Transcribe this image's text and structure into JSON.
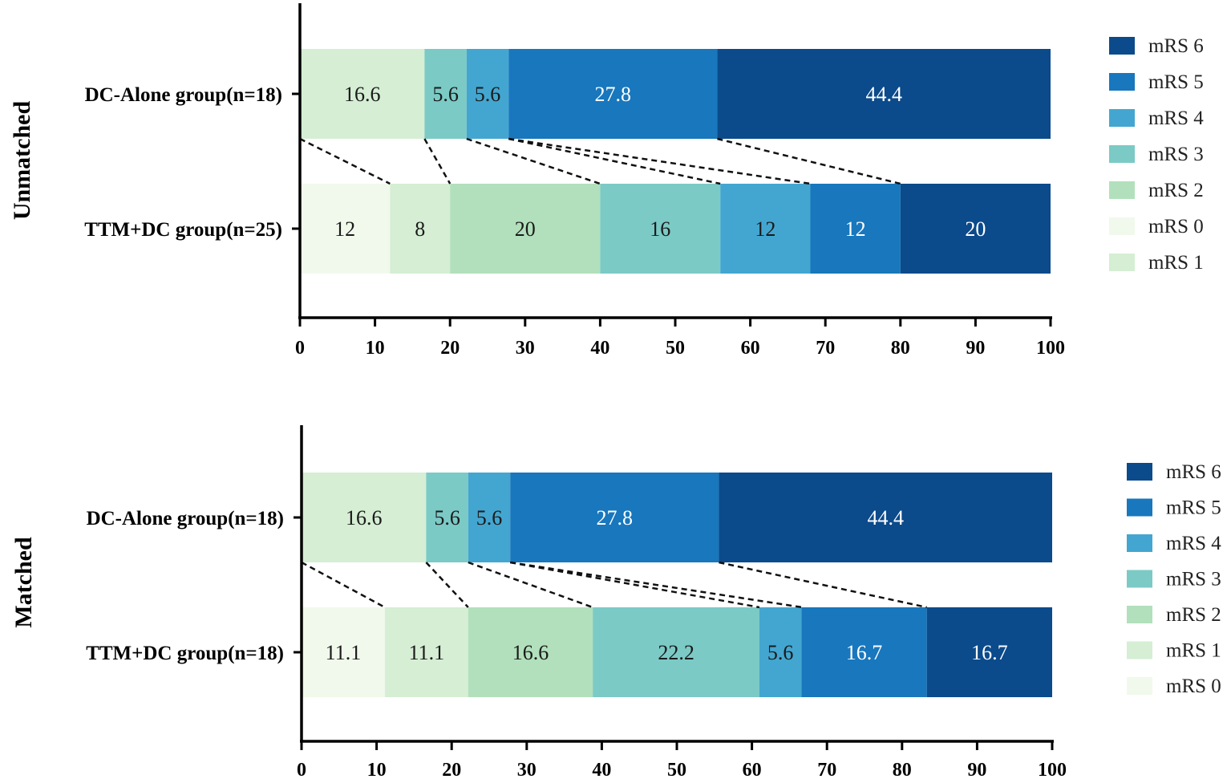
{
  "colors": {
    "mRS 0": "#f1f9ec",
    "mRS 1": "#d5eed4",
    "mRS 2": "#b2e0bc",
    "mRS 3": "#7bcac6",
    "mRS 4": "#43a6d0",
    "mRS 5": "#1877bd",
    "mRS 6": "#0b4a8b"
  },
  "chart_data": [
    {
      "type": "bar",
      "orientation": "horizontal-stacked",
      "panel_label": "Unmatched",
      "categories": [
        "DC-Alone group(n=18)",
        "TTM+DC group(n=25)"
      ],
      "xlim": [
        0,
        100
      ],
      "xticks": [
        "0",
        "10",
        "20",
        "30",
        "40",
        "50",
        "60",
        "70",
        "80",
        "90",
        "100"
      ],
      "rows": [
        {
          "segments": [
            {
              "level": "mRS 1",
              "value": 16.6,
              "label": "16.6"
            },
            {
              "level": "mRS 3",
              "value": 5.6,
              "label": "5.6"
            },
            {
              "level": "mRS 4",
              "value": 5.6,
              "label": "5.6"
            },
            {
              "level": "mRS 5",
              "value": 27.8,
              "label": "27.8"
            },
            {
              "level": "mRS 6",
              "value": 44.4,
              "label": "44.4"
            }
          ]
        },
        {
          "segments": [
            {
              "level": "mRS 0",
              "value": 12,
              "label": "12"
            },
            {
              "level": "mRS 1",
              "value": 8,
              "label": "8"
            },
            {
              "level": "mRS 2",
              "value": 20,
              "label": "20"
            },
            {
              "level": "mRS 3",
              "value": 16,
              "label": "16"
            },
            {
              "level": "mRS 4",
              "value": 12,
              "label": "12"
            },
            {
              "level": "mRS 5",
              "value": 12,
              "label": "12"
            },
            {
              "level": "mRS 6",
              "value": 20,
              "label": "20"
            }
          ]
        }
      ],
      "legend": [
        "mRS 6",
        "mRS 5",
        "mRS 4",
        "mRS 3",
        "mRS 2",
        "mRS 0",
        "mRS 1"
      ],
      "connectors": [
        [
          0,
          12
        ],
        [
          16.6,
          20
        ],
        [
          22.2,
          40
        ],
        [
          27.8,
          68
        ],
        [
          27.8,
          56
        ],
        [
          55.6,
          80
        ]
      ]
    },
    {
      "type": "bar",
      "orientation": "horizontal-stacked",
      "panel_label": "Matched",
      "categories": [
        "DC-Alone group(n=18)",
        "TTM+DC group(n=18)"
      ],
      "xlim": [
        0,
        100
      ],
      "xticks": [
        "0",
        "10",
        "20",
        "30",
        "40",
        "50",
        "60",
        "70",
        "80",
        "90",
        "100"
      ],
      "rows": [
        {
          "segments": [
            {
              "level": "mRS 1",
              "value": 16.6,
              "label": "16.6"
            },
            {
              "level": "mRS 3",
              "value": 5.6,
              "label": "5.6"
            },
            {
              "level": "mRS 4",
              "value": 5.6,
              "label": "5.6"
            },
            {
              "level": "mRS 5",
              "value": 27.8,
              "label": "27.8"
            },
            {
              "level": "mRS 6",
              "value": 44.4,
              "label": "44.4"
            }
          ]
        },
        {
          "segments": [
            {
              "level": "mRS 0",
              "value": 11.1,
              "label": "11.1"
            },
            {
              "level": "mRS 1",
              "value": 11.1,
              "label": "11.1"
            },
            {
              "level": "mRS 2",
              "value": 16.6,
              "label": "16.6"
            },
            {
              "level": "mRS 3",
              "value": 22.2,
              "label": "22.2"
            },
            {
              "level": "mRS 4",
              "value": 5.6,
              "label": "5.6"
            },
            {
              "level": "mRS 5",
              "value": 16.7,
              "label": "16.7"
            },
            {
              "level": "mRS 6",
              "value": 16.7,
              "label": "16.7"
            }
          ]
        }
      ],
      "legend": [
        "mRS 6",
        "mRS 5",
        "mRS 4",
        "mRS 3",
        "mRS 2",
        "mRS 1",
        "mRS 0"
      ],
      "connectors": [
        [
          0,
          11.1
        ],
        [
          16.6,
          22.2
        ],
        [
          22.2,
          38.8
        ],
        [
          27.8,
          66.7
        ],
        [
          27.8,
          61
        ],
        [
          55.6,
          83.3
        ]
      ]
    }
  ]
}
